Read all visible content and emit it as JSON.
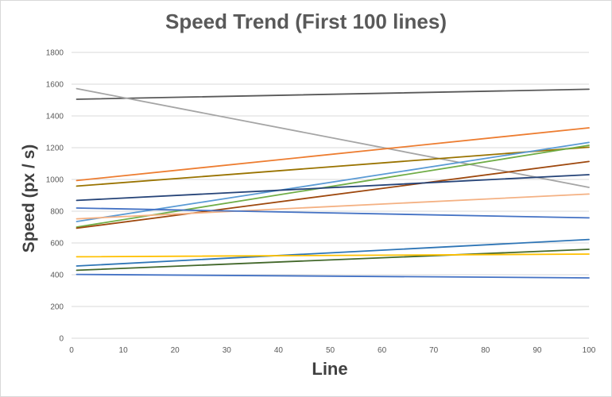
{
  "chart_data": {
    "type": "line",
    "title": "Speed Trend (First 100 lines)",
    "xlabel": "Line",
    "ylabel": "Speed (px / s)",
    "xlim": [
      0,
      100
    ],
    "ylim": [
      0,
      1800
    ],
    "x_ticks": [
      0,
      10,
      20,
      30,
      40,
      50,
      60,
      70,
      80,
      90,
      100
    ],
    "y_ticks": [
      0,
      200,
      400,
      600,
      800,
      1000,
      1200,
      1400,
      1600,
      1800
    ],
    "grid": "horizontal",
    "legend": "none",
    "series": [
      {
        "color": "#595959",
        "points": [
          [
            1,
            1505
          ],
          [
            100,
            1568
          ]
        ]
      },
      {
        "color": "#a5a5a5",
        "points": [
          [
            1,
            1572
          ],
          [
            100,
            950
          ]
        ]
      },
      {
        "color": "#ed7d31",
        "points": [
          [
            1,
            993
          ],
          [
            100,
            1325
          ]
        ]
      },
      {
        "color": "#997300",
        "points": [
          [
            1,
            958
          ],
          [
            100,
            1203
          ]
        ]
      },
      {
        "color": "#5b9bd5",
        "points": [
          [
            1,
            735
          ],
          [
            100,
            1233
          ]
        ]
      },
      {
        "color": "#70ad47",
        "points": [
          [
            1,
            700
          ],
          [
            100,
            1215
          ]
        ]
      },
      {
        "color": "#9e480e",
        "points": [
          [
            1,
            693
          ],
          [
            100,
            1113
          ]
        ]
      },
      {
        "color": "#264478",
        "points": [
          [
            1,
            868
          ],
          [
            100,
            1030
          ]
        ]
      },
      {
        "color": "#f4b183",
        "points": [
          [
            1,
            752
          ],
          [
            100,
            908
          ]
        ]
      },
      {
        "color": "#4472c4",
        "points": [
          [
            1,
            820
          ],
          [
            100,
            758
          ]
        ]
      },
      {
        "color": "#2e75b6",
        "points": [
          [
            1,
            455
          ],
          [
            100,
            622
          ]
        ]
      },
      {
        "color": "#43682b",
        "points": [
          [
            1,
            428
          ],
          [
            100,
            560
          ]
        ]
      },
      {
        "color": "#ffc000",
        "points": [
          [
            1,
            513
          ],
          [
            100,
            530
          ]
        ]
      },
      {
        "color": "#4472c4",
        "points": [
          [
            1,
            402
          ],
          [
            100,
            380
          ]
        ]
      }
    ]
  }
}
